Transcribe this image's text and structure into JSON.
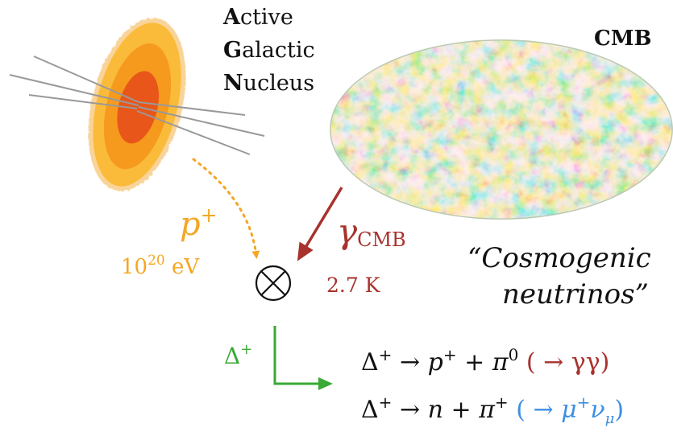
{
  "agn_label": {
    "line1_initial": "A",
    "line1_rest": "ctive",
    "line2_initial": "G",
    "line2_rest": "alactic",
    "line3_initial": "N",
    "line3_rest": "ucleus"
  },
  "cmb_label": "CMB",
  "proton": {
    "symbol": "p",
    "charge": "+",
    "energy_base": "10",
    "energy_exp": "20",
    "energy_unit": " eV"
  },
  "photon": {
    "symbol": "γ",
    "subscript": "CMB",
    "temperature": "2.7 K"
  },
  "cosmogenic": {
    "line1": "“Cosmogenic",
    "line2": "neutrinos”"
  },
  "delta": {
    "symbol": "Δ",
    "charge": "+"
  },
  "reaction1": {
    "lhs": "Δ",
    "lhs_charge": "+",
    "arrow": " → ",
    "p": "p",
    "p_charge": "+",
    "plus": " + ",
    "pi": "π",
    "pi_charge": "0",
    "decay": " ( → γγ)"
  },
  "reaction2": {
    "lhs": "Δ",
    "lhs_charge": "+",
    "arrow": " → ",
    "n": "n",
    "plus": " + ",
    "pi": "π",
    "pi_charge": "+",
    "decay_open": " ( → ",
    "mu": "μ",
    "mu_charge": "+",
    "nu": "ν",
    "nu_sub": "μ",
    "decay_close": ")"
  },
  "colors": {
    "orange": "#f5a623",
    "dark_red": "#a8322d",
    "green": "#3aa935",
    "blue": "#3d8fe0",
    "gray": "#999999",
    "black": "#111111"
  }
}
